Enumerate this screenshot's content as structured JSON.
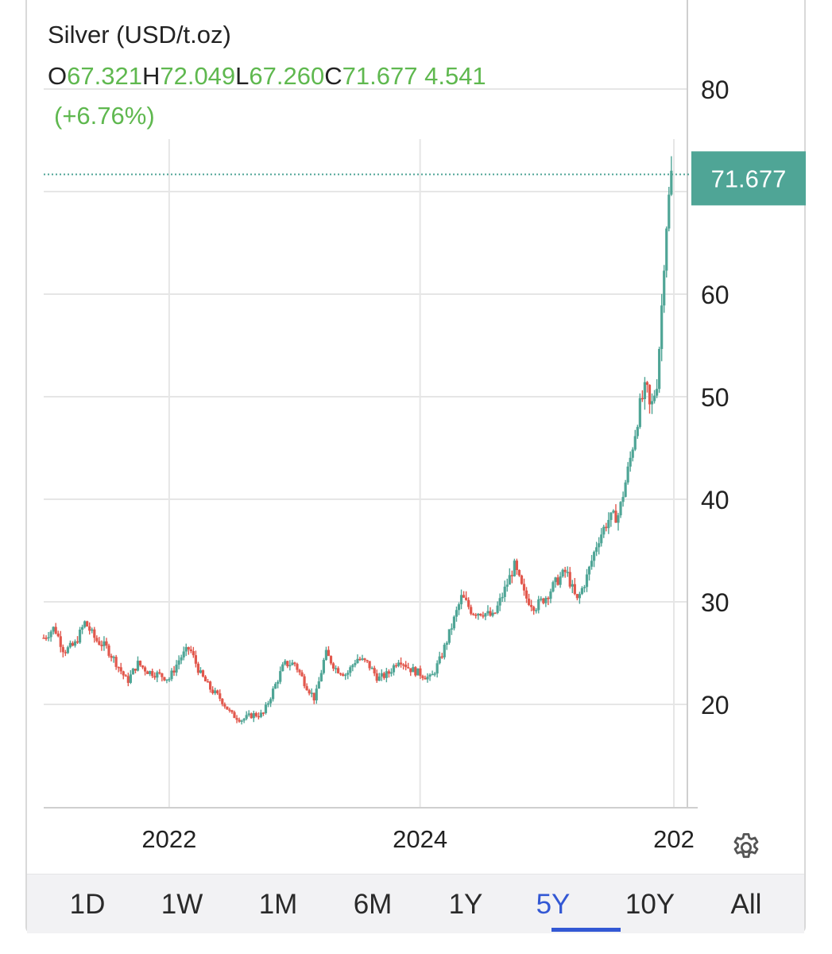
{
  "header": {
    "title": "Silver (USD/t.oz)",
    "o_label": "O",
    "open": "67.321",
    "h_label": "H",
    "high": "72.049",
    "l_label": "L",
    "low": "67.260",
    "c_label": "C",
    "close": "71.677",
    "change": "4.541",
    "change_pct": "(+6.76%)"
  },
  "colors": {
    "up": "#4fa596",
    "down": "#e2574c",
    "value_green": "#5fb84f",
    "active_tab": "#3358d4"
  },
  "chart_data": {
    "type": "candlestick",
    "title": "Silver (USD/t.oz)",
    "x_tick_labels": [
      "2022",
      "2024",
      "202"
    ],
    "x_ticks": [
      "2022-01-01",
      "2024-01-01",
      "2026-01-01"
    ],
    "y_tick_labels": [
      "20",
      "30",
      "40",
      "50",
      "60",
      "80"
    ],
    "y_ticks": [
      20,
      30,
      40,
      50,
      60,
      80
    ],
    "ylim": [
      10,
      84
    ],
    "xlim": [
      "2021-01-01",
      "2026-01-06"
    ],
    "last_price_label": "71.677",
    "last_price": 71.677,
    "grid": true,
    "series": [
      {
        "values": [
          [
            "2021-01-01",
            26.5
          ],
          [
            "2021-02-01",
            27.5
          ],
          [
            "2021-03-01",
            25.2
          ],
          [
            "2021-04-01",
            25.8
          ],
          [
            "2021-05-01",
            28.0
          ],
          [
            "2021-06-01",
            26.3
          ],
          [
            "2021-07-01",
            25.6
          ],
          [
            "2021-08-01",
            24.0
          ],
          [
            "2021-09-01",
            22.2
          ],
          [
            "2021-10-01",
            24.0
          ],
          [
            "2021-11-01",
            23.2
          ],
          [
            "2021-12-01",
            22.9
          ],
          [
            "2022-01-01",
            22.5
          ],
          [
            "2022-02-01",
            24.5
          ],
          [
            "2022-03-01",
            25.5
          ],
          [
            "2022-04-01",
            23.0
          ],
          [
            "2022-05-01",
            21.5
          ],
          [
            "2022-06-01",
            20.5
          ],
          [
            "2022-07-01",
            19.0
          ],
          [
            "2022-08-01",
            18.5
          ],
          [
            "2022-09-01",
            19.0
          ],
          [
            "2022-10-01",
            19.0
          ],
          [
            "2022-11-01",
            21.5
          ],
          [
            "2022-12-01",
            23.9
          ],
          [
            "2023-01-01",
            24.0
          ],
          [
            "2023-02-01",
            22.0
          ],
          [
            "2023-03-01",
            20.5
          ],
          [
            "2023-04-01",
            25.0
          ],
          [
            "2023-05-01",
            23.5
          ],
          [
            "2023-06-01",
            22.9
          ],
          [
            "2023-07-01",
            24.5
          ],
          [
            "2023-08-01",
            24.0
          ],
          [
            "2023-09-01",
            22.5
          ],
          [
            "2023-10-01",
            23.0
          ],
          [
            "2023-11-01",
            24.5
          ],
          [
            "2023-12-01",
            23.5
          ],
          [
            "2024-01-01",
            23.0
          ],
          [
            "2024-02-01",
            22.5
          ],
          [
            "2024-03-01",
            24.5
          ],
          [
            "2024-04-01",
            27.5
          ],
          [
            "2024-05-01",
            30.5
          ],
          [
            "2024-06-01",
            29.0
          ],
          [
            "2024-07-01",
            29.0
          ],
          [
            "2024-08-01",
            28.5
          ],
          [
            "2024-09-01",
            31.0
          ],
          [
            "2024-10-01",
            33.5
          ],
          [
            "2024-11-01",
            30.5
          ],
          [
            "2024-12-01",
            29.5
          ],
          [
            "2025-01-01",
            30.5
          ],
          [
            "2025-02-01",
            32.0
          ],
          [
            "2025-03-01",
            33.0
          ],
          [
            "2025-04-01",
            30.0
          ],
          [
            "2025-05-01",
            32.5
          ],
          [
            "2025-06-01",
            36.0
          ],
          [
            "2025-07-01",
            38.0
          ],
          [
            "2025-08-01",
            38.5
          ],
          [
            "2025-09-01",
            43.5
          ],
          [
            "2025-10-01",
            49.0
          ],
          [
            "2025-10-20",
            51.0
          ],
          [
            "2025-11-01",
            48.5
          ],
          [
            "2025-11-20",
            51.5
          ],
          [
            "2025-12-01",
            57.0
          ],
          [
            "2025-12-15",
            66.0
          ],
          [
            "2026-01-01",
            71.677
          ]
        ]
      }
    ]
  },
  "periods": [
    "1D",
    "1W",
    "1M",
    "6M",
    "1Y",
    "5Y",
    "10Y",
    "All"
  ],
  "active_period": "5Y",
  "icons": {
    "settings": "gear-icon"
  }
}
